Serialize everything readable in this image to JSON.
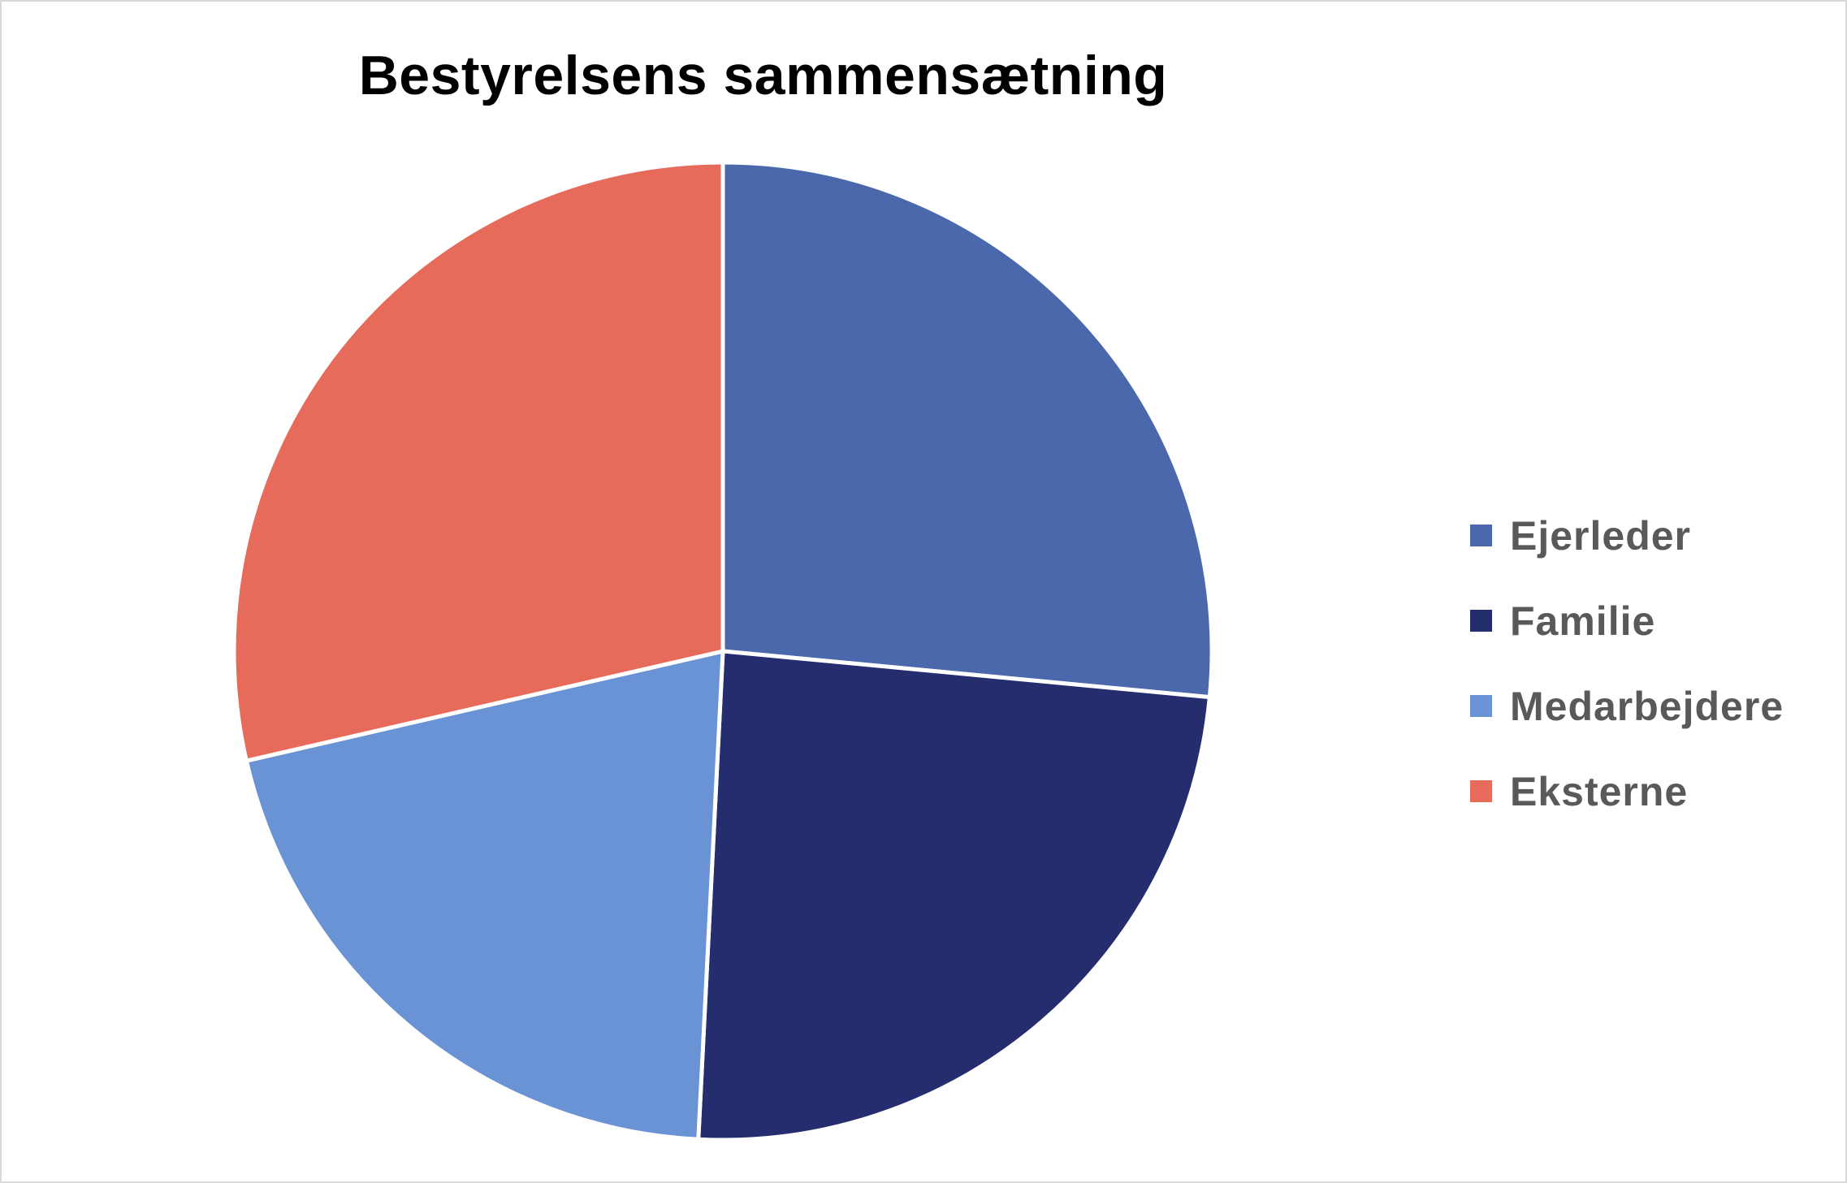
{
  "chart_data": {
    "type": "pie",
    "title": "Bestyrelsens sammensætning",
    "legend_position": "right",
    "series": [
      {
        "labels": [
          "Ejerleder",
          "Familie",
          "Medarbejdere",
          "Eksterne"
        ],
        "values": [
          26.5,
          24.3,
          20.6,
          28.6
        ],
        "colors": [
          "#4a68ab",
          "#252d6f",
          "#6993d5",
          "#e76b5b"
        ]
      }
    ]
  }
}
